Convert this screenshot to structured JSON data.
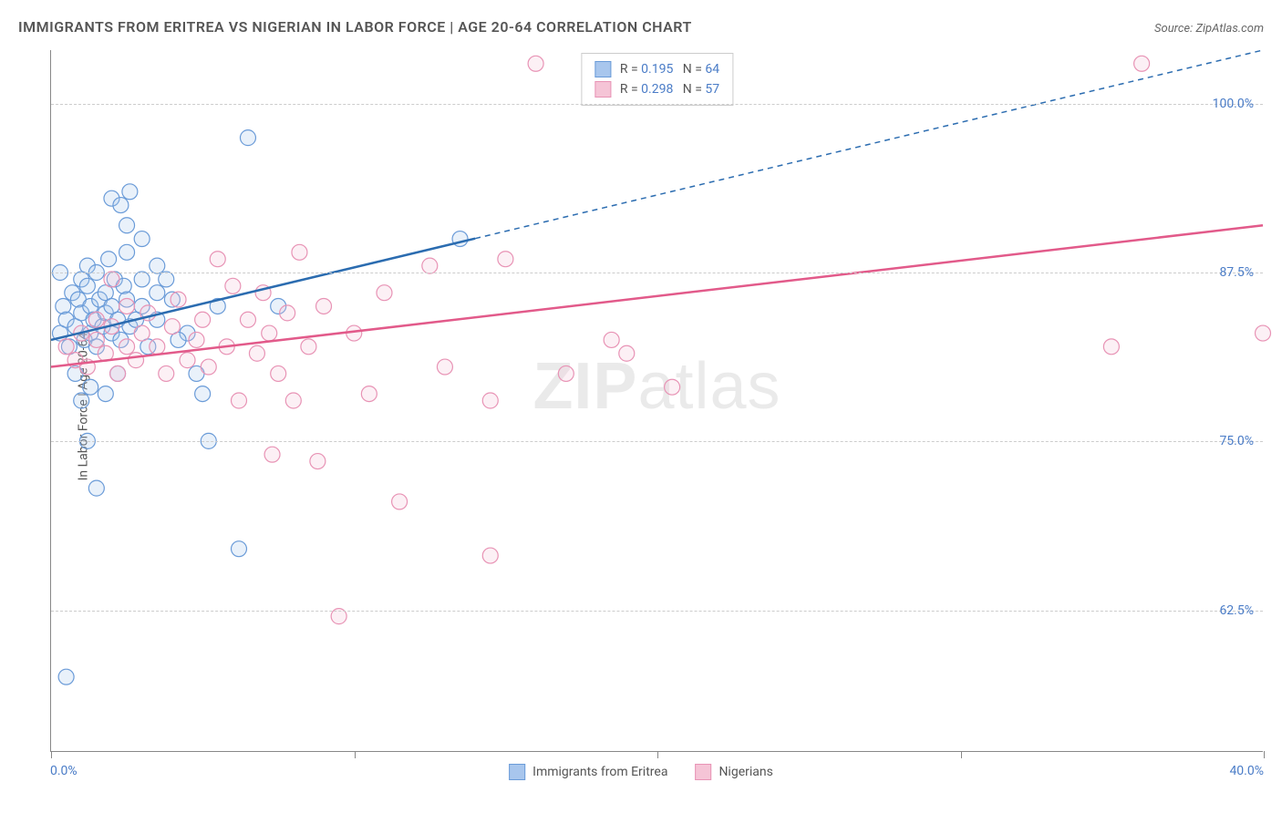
{
  "title": "IMMIGRANTS FROM ERITREA VS NIGERIAN IN LABOR FORCE | AGE 20-64 CORRELATION CHART",
  "source_label": "Source: ",
  "source_name": "ZipAtlas.com",
  "ylabel": "In Labor Force | Age 20-64",
  "watermark": "ZIPatlas",
  "chart": {
    "type": "scatter",
    "xlim": [
      0,
      40
    ],
    "ylim": [
      52,
      104
    ],
    "x_ticks": [
      0,
      10,
      20,
      30,
      40
    ],
    "y_ticks": [
      62.5,
      75.0,
      87.5,
      100.0
    ],
    "y_tick_labels": [
      "62.5%",
      "75.0%",
      "87.5%",
      "100.0%"
    ],
    "x_tick_labels_ends": [
      "0.0%",
      "40.0%"
    ],
    "background_color": "#ffffff",
    "grid_color": "#cccccc",
    "axis_color": "#888888",
    "tick_label_color": "#4a7cc7",
    "marker_radius": 8.5,
    "marker_stroke_width": 1.2,
    "marker_fill_opacity": 0.25,
    "line_width": 2.5,
    "series": [
      {
        "name": "Immigrants from Eritrea",
        "color_fill": "#a8c6ed",
        "color_stroke": "#6a9bd8",
        "line_color": "#2b6cb0",
        "R": "0.195",
        "N": "64",
        "trend": {
          "x1": 0,
          "y1": 82.5,
          "x2": 40,
          "y2": 104,
          "solid_until_x": 14
        },
        "points": [
          [
            0.3,
            83
          ],
          [
            0.4,
            85
          ],
          [
            0.5,
            84
          ],
          [
            0.6,
            82
          ],
          [
            0.7,
            86
          ],
          [
            0.8,
            83.5
          ],
          [
            0.9,
            85.5
          ],
          [
            1.0,
            84.5
          ],
          [
            1.0,
            87
          ],
          [
            1.1,
            82.5
          ],
          [
            1.2,
            86.5
          ],
          [
            1.2,
            88
          ],
          [
            1.3,
            83
          ],
          [
            1.3,
            85
          ],
          [
            1.4,
            84
          ],
          [
            1.5,
            87.5
          ],
          [
            1.5,
            82
          ],
          [
            1.6,
            85.5
          ],
          [
            1.7,
            83.5
          ],
          [
            1.8,
            86
          ],
          [
            1.8,
            84.5
          ],
          [
            1.9,
            88.5
          ],
          [
            2.0,
            83
          ],
          [
            2.0,
            85
          ],
          [
            2.1,
            87
          ],
          [
            2.2,
            84
          ],
          [
            2.3,
            82.5
          ],
          [
            2.4,
            86.5
          ],
          [
            2.5,
            85.5
          ],
          [
            2.5,
            89
          ],
          [
            2.6,
            83.5
          ],
          [
            2.8,
            84
          ],
          [
            3.0,
            87
          ],
          [
            3.0,
            85
          ],
          [
            3.2,
            82
          ],
          [
            3.5,
            86
          ],
          [
            3.5,
            88
          ],
          [
            1.0,
            78
          ],
          [
            1.2,
            75
          ],
          [
            1.5,
            71.5
          ],
          [
            2.0,
            93
          ],
          [
            2.3,
            92.5
          ],
          [
            2.5,
            91
          ],
          [
            2.6,
            93.5
          ],
          [
            3.0,
            90
          ],
          [
            3.5,
            84
          ],
          [
            4.0,
            85.5
          ],
          [
            4.5,
            83
          ],
          [
            5.0,
            78.5
          ],
          [
            5.2,
            75
          ],
          [
            5.5,
            85
          ],
          [
            6.2,
            67
          ],
          [
            6.5,
            97.5
          ],
          [
            7.5,
            85
          ],
          [
            13.5,
            90
          ],
          [
            0.5,
            57.5
          ],
          [
            1.8,
            78.5
          ],
          [
            2.2,
            80
          ],
          [
            4.8,
            80
          ],
          [
            0.8,
            80
          ],
          [
            1.3,
            79
          ],
          [
            3.8,
            87
          ],
          [
            4.2,
            82.5
          ],
          [
            0.3,
            87.5
          ]
        ]
      },
      {
        "name": "Nigerians",
        "color_fill": "#f5c4d6",
        "color_stroke": "#e893b5",
        "line_color": "#e25a8a",
        "R": "0.298",
        "N": "57",
        "trend": {
          "x1": 0,
          "y1": 80.5,
          "x2": 40,
          "y2": 91,
          "solid_until_x": 40
        },
        "points": [
          [
            0.5,
            82
          ],
          [
            0.8,
            81
          ],
          [
            1.0,
            83
          ],
          [
            1.2,
            80.5
          ],
          [
            1.5,
            82.5
          ],
          [
            1.5,
            84
          ],
          [
            1.8,
            81.5
          ],
          [
            2.0,
            83.5
          ],
          [
            2.2,
            80
          ],
          [
            2.5,
            82
          ],
          [
            2.5,
            85
          ],
          [
            2.8,
            81
          ],
          [
            3.0,
            83
          ],
          [
            3.2,
            84.5
          ],
          [
            3.5,
            82
          ],
          [
            3.8,
            80
          ],
          [
            4.0,
            83.5
          ],
          [
            4.2,
            85.5
          ],
          [
            4.5,
            81
          ],
          [
            4.8,
            82.5
          ],
          [
            5.0,
            84
          ],
          [
            5.2,
            80.5
          ],
          [
            5.5,
            88.5
          ],
          [
            5.8,
            82
          ],
          [
            6.0,
            86.5
          ],
          [
            6.2,
            78
          ],
          [
            6.5,
            84
          ],
          [
            6.8,
            81.5
          ],
          [
            7.0,
            86
          ],
          [
            7.2,
            83
          ],
          [
            7.3,
            74
          ],
          [
            7.5,
            80
          ],
          [
            7.8,
            84.5
          ],
          [
            8.0,
            78
          ],
          [
            8.2,
            89
          ],
          [
            8.5,
            82
          ],
          [
            8.8,
            73.5
          ],
          [
            9.0,
            85
          ],
          [
            9.5,
            62
          ],
          [
            10.0,
            83
          ],
          [
            10.5,
            78.5
          ],
          [
            11.0,
            86
          ],
          [
            11.5,
            70.5
          ],
          [
            12.5,
            88
          ],
          [
            13.0,
            80.5
          ],
          [
            14.5,
            66.5
          ],
          [
            14.5,
            78
          ],
          [
            15.0,
            88.5
          ],
          [
            17.0,
            80
          ],
          [
            18.5,
            82.5
          ],
          [
            19.0,
            81.5
          ],
          [
            20.5,
            79
          ],
          [
            16.0,
            103
          ],
          [
            35.0,
            82
          ],
          [
            36.0,
            103
          ],
          [
            40.0,
            83
          ],
          [
            2.0,
            87
          ]
        ]
      }
    ]
  },
  "legend_top": {
    "R_label": "R  =",
    "N_label": "N  ="
  },
  "legend_bottom": {
    "items": [
      {
        "label": "Immigrants from Eritrea",
        "series_idx": 0
      },
      {
        "label": "Nigerians",
        "series_idx": 1
      }
    ]
  }
}
